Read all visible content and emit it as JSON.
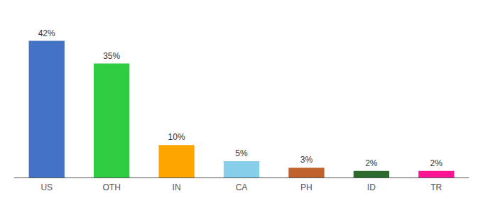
{
  "chart_data": {
    "type": "bar",
    "categories": [
      "US",
      "OTH",
      "IN",
      "CA",
      "PH",
      "ID",
      "TR"
    ],
    "values": [
      42,
      35,
      10,
      5,
      3,
      2,
      2
    ],
    "value_labels": [
      "42%",
      "35%",
      "10%",
      "5%",
      "3%",
      "2%",
      "2%"
    ],
    "colors": [
      "#4472C4",
      "#2ECC40",
      "#FFA500",
      "#87CEEB",
      "#C0622D",
      "#2D6A2D",
      "#FF1493"
    ],
    "ylim": [
      0,
      48
    ],
    "grid": false,
    "data_labels": true,
    "tick_labels": "x"
  }
}
